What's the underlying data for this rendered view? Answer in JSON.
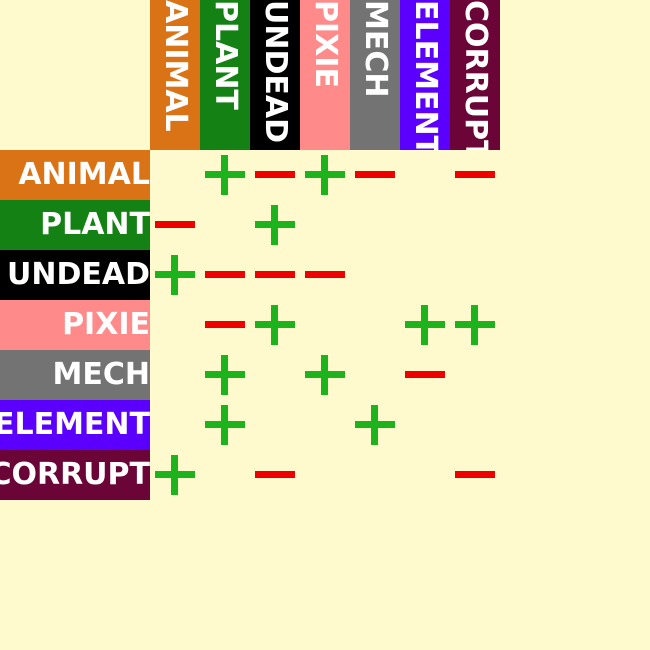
{
  "colors": {
    "background": "#FFFACD",
    "plus": "#1DB31D",
    "minus": "#EE0000"
  },
  "icons": {
    "plus": "plus-icon",
    "minus": "minus-icon"
  },
  "categories": [
    {
      "label": "ANIMAL",
      "color": "#D97316"
    },
    {
      "label": "PLANT",
      "color": "#138113"
    },
    {
      "label": "UNDEAD",
      "color": "#000000"
    },
    {
      "label": "PIXIE",
      "color": "#FF8A8A"
    },
    {
      "label": "MECH",
      "color": "#737373"
    },
    {
      "label": "ELEMENT",
      "color": "#5B00FF"
    },
    {
      "label": "CORRUPT",
      "color": "#6B0537"
    }
  ],
  "matrix": [
    [
      "",
      "+",
      "-",
      "+",
      "-",
      "",
      "-"
    ],
    [
      "-",
      "",
      "+",
      "",
      "",
      "",
      ""
    ],
    [
      "+",
      "-",
      "-",
      "-",
      "",
      "",
      ""
    ],
    [
      "",
      "-",
      "+",
      "",
      "",
      "+",
      "+"
    ],
    [
      "",
      "+",
      "",
      "+",
      "",
      "-",
      ""
    ],
    [
      "",
      "+",
      "",
      "",
      "+",
      "",
      ""
    ],
    [
      "+",
      "",
      "-",
      "",
      "",
      "",
      "-"
    ]
  ]
}
